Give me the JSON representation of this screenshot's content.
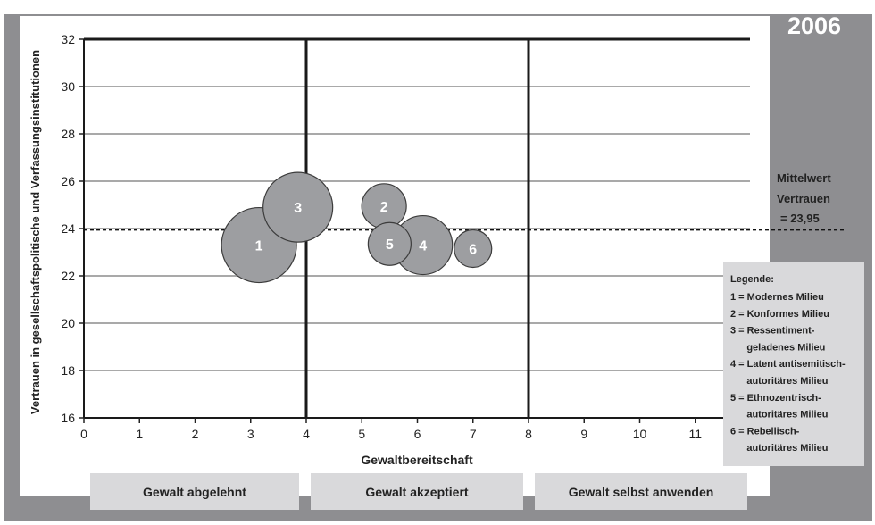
{
  "chart_data": {
    "type": "scatter",
    "title": "2006",
    "xlabel": "Gewaltbereitschaft",
    "ylabel": "Vertrauen in gesellschaftspolitische und Verfassungsinstitutionen",
    "xlim": [
      0,
      12
    ],
    "ylim": [
      16,
      32
    ],
    "xticks": [
      "0",
      "1",
      "2",
      "3",
      "4",
      "5",
      "6",
      "7",
      "8",
      "9",
      "10",
      "11"
    ],
    "yticks": [
      "16",
      "18",
      "20",
      "22",
      "24",
      "26",
      "28",
      "30",
      "32"
    ],
    "grid": "horizontal",
    "quadrant_lines_x": [
      4,
      8
    ],
    "mean_line": {
      "y": 23.95,
      "label_lines": [
        "Mittelwert",
        "Vertrauen",
        "= 23,95"
      ]
    },
    "points": [
      {
        "label": "1",
        "x": 3.15,
        "y": 23.3,
        "r": 42
      },
      {
        "label": "3",
        "x": 3.85,
        "y": 24.9,
        "r": 39
      },
      {
        "label": "2",
        "x": 5.4,
        "y": 24.95,
        "r": 25
      },
      {
        "label": "4",
        "x": 6.1,
        "y": 23.3,
        "r": 33
      },
      {
        "label": "5",
        "x": 5.5,
        "y": 23.35,
        "r": 24
      },
      {
        "label": "6",
        "x": 7.0,
        "y": 23.15,
        "r": 21
      }
    ],
    "legend": {
      "title": "Legende:",
      "lines": [
        "1 = Modernes Milieu",
        "2 = Konformes Milieu",
        "3 = Ressentiment-",
        "      geladenes Milieu",
        "4 = Latent antisemitisch-",
        "      autoritäres Milieu",
        "5 = Ethnozentrisch-",
        "      autoritäres Milieu",
        "6 = Rebellisch-",
        "      autoritäres Milieu"
      ],
      "position": "right"
    },
    "bands": [
      "Gewalt abgelehnt",
      "Gewalt akzeptiert",
      "Gewalt selbst anwenden"
    ]
  },
  "colors": {
    "frame": "#8e8e91",
    "bubble_fill": "#9d9ea1",
    "bubble_stroke": "#3c3c3c",
    "grid": "#a9a9a9",
    "band": "#d9d9db",
    "legend_bg": "#d9d9db"
  }
}
